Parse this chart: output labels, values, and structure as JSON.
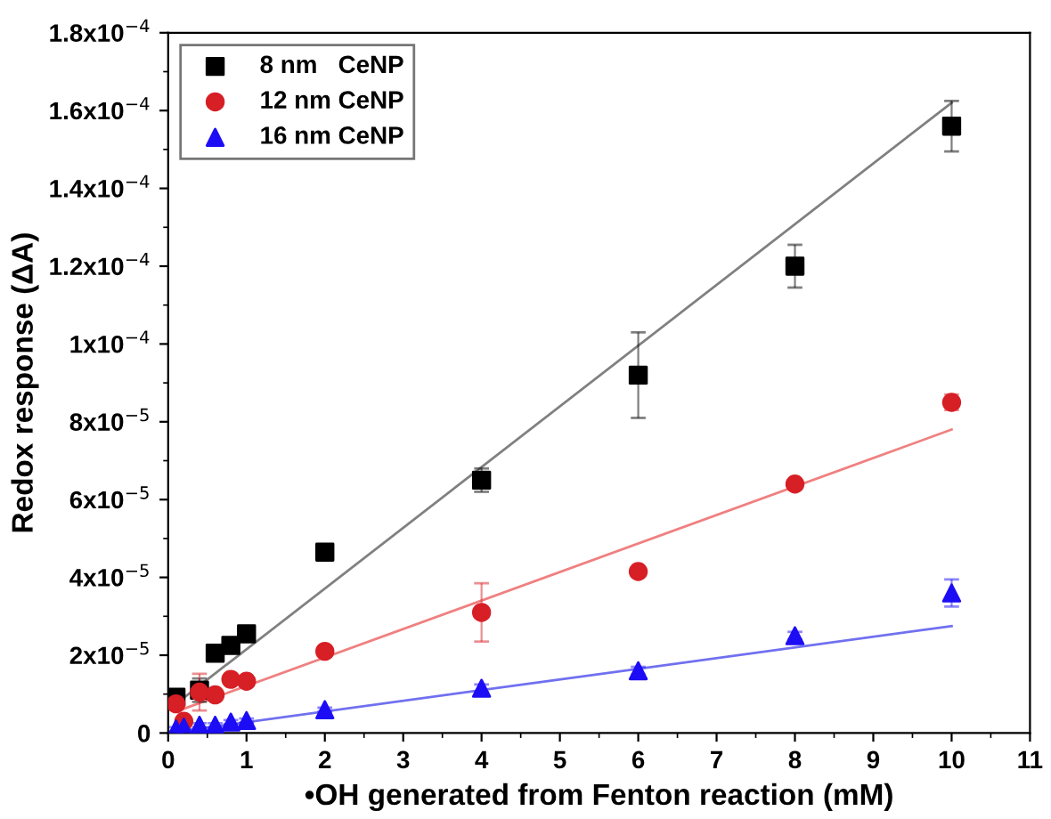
{
  "chart_data": {
    "type": "scatter",
    "xlabel": "•OH generated from Fenton reaction (mM)",
    "ylabel": "Redox response (ΔA)",
    "xlim": [
      0,
      11
    ],
    "xticks": [
      0,
      1,
      2,
      3,
      4,
      5,
      6,
      7,
      8,
      9,
      10,
      11
    ],
    "ylim": [
      0,
      0.00018
    ],
    "yticks": [
      0,
      {
        "value": 2e-05,
        "label": "2x10$^{−5}$"
      },
      {
        "value": 4e-05,
        "label": "4x10$^{−5}$"
      },
      {
        "value": 6e-05,
        "label": "6x10$^{−5}$"
      },
      {
        "value": 8e-05,
        "label": "8x10$^{−5}$"
      },
      {
        "value": 0.0001,
        "label": "1x10$^{−4}$"
      },
      {
        "value": 0.00012,
        "label": "1.2x10$^{−4}$"
      },
      {
        "value": 0.00014,
        "label": "1.4x10$^{−4}$"
      },
      {
        "value": 0.00016,
        "label": "1.6x10$^{−4}$"
      },
      {
        "value": 0.00018,
        "label": "1.8x10$^{−4}$"
      }
    ],
    "legend": "top left",
    "grid": false,
    "series": [
      {
        "name": "8 nm   CeNP",
        "marker": "square",
        "color": "#000000",
        "x": [
          0.1,
          0.4,
          0.6,
          0.8,
          1,
          2,
          4,
          6,
          8,
          10
        ],
        "values": [
          9.2e-06,
          1.1e-05,
          2.05e-05,
          2.25e-05,
          2.55e-05,
          4.65e-05,
          6.5e-05,
          9.2e-05,
          0.00012,
          0.000156
        ],
        "errors": [
          1e-06,
          3e-06,
          2e-06,
          1e-06,
          1e-06,
          1e-06,
          3e-06,
          1.1e-05,
          5.5e-06,
          6.5e-06
        ]
      },
      {
        "name": "12 nm CeNP",
        "marker": "circle",
        "color": "#d71f26",
        "x": [
          0.1,
          0.2,
          0.4,
          0.6,
          0.8,
          1,
          2,
          4,
          6,
          8,
          10
        ],
        "values": [
          7.5e-06,
          3e-06,
          1.05e-05,
          9.8e-06,
          1.38e-05,
          1.33e-05,
          2.1e-05,
          3.1e-05,
          4.15e-05,
          6.4e-05,
          8.5e-05
        ],
        "errors": [
          1e-06,
          1e-06,
          4.7e-06,
          1e-06,
          1e-06,
          1e-06,
          1e-06,
          7.5e-06,
          1e-06,
          1e-06,
          2e-06
        ]
      },
      {
        "name": "16 nm CeNP",
        "marker": "triangle",
        "color": "#1c0df5",
        "x": [
          0.1,
          0.2,
          0.4,
          0.6,
          0.8,
          1,
          2,
          4,
          6,
          8,
          10
        ],
        "values": [
          1e-06,
          1.5e-06,
          2e-06,
          2e-06,
          2.8e-06,
          3.2e-06,
          6e-06,
          1.15e-05,
          1.6e-05,
          2.5e-05,
          3.6e-05
        ],
        "errors": [
          5e-07,
          5e-07,
          5e-07,
          5e-07,
          5e-07,
          5e-07,
          5e-07,
          1e-06,
          1e-06,
          1e-06,
          3.5e-06
        ]
      },
      {
        "type": "line",
        "color": "#808080",
        "x": [
          0.1,
          10
        ],
        "values": [
          7.5e-06,
          0.000162
        ]
      },
      {
        "type": "line",
        "color": "#f08080",
        "x": [
          0.1,
          10
        ],
        "values": [
          5.5e-06,
          7.8e-05
        ]
      },
      {
        "type": "line",
        "color": "#7070f0",
        "x": [
          0.1,
          10
        ],
        "values": [
          3e-07,
          2.75e-05
        ]
      }
    ]
  }
}
